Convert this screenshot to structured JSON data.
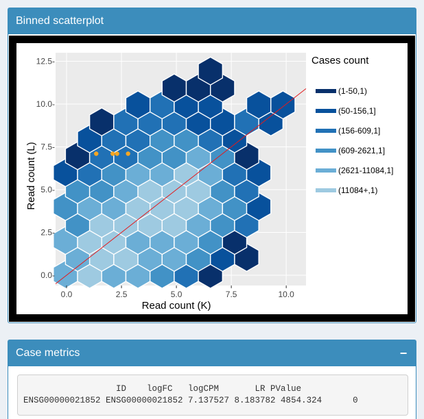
{
  "panel_plot": {
    "title": "Binned scatterplot",
    "collapse_icon": "minus-icon"
  },
  "panel_metrics": {
    "title": "Case metrics",
    "collapse_label": "−",
    "collapse_icon": "minus-icon",
    "table_header": "                  ID    logFC   logCPM       LR PValue",
    "table_row": "ENSG00000021852 ENSG00000021852 7.137527 8.183782 4854.324      0"
  },
  "colors": {
    "header": "#3c8dbc",
    "plot_background": "#ebebeb",
    "bins": [
      "#08306b",
      "#08519c",
      "#2171b5",
      "#4292c6",
      "#6baed6",
      "#9ecae1"
    ],
    "points": "#f5a623",
    "reference_line": "#e41a1c"
  },
  "chart_data": {
    "type": "hexbin",
    "xlabel": "Read count (K)",
    "ylabel": "Read count (L)",
    "xlim": [
      -0.5,
      10.9
    ],
    "ylim": [
      -0.6,
      13.0
    ],
    "xticks": [
      0.0,
      2.5,
      5.0,
      7.5,
      10.0
    ],
    "xtick_labels": [
      "0.0",
      "2.5",
      "5.0",
      "7.5",
      "10.0"
    ],
    "yticks": [
      0.0,
      2.5,
      5.0,
      7.5,
      10.0,
      12.5
    ],
    "ytick_labels": [
      "0.0-",
      "2.5-",
      "5.0-",
      "7.5-",
      "10.0-",
      "12.5-"
    ],
    "grid": true,
    "legend": {
      "title": "Cases count",
      "position": "right",
      "labels": [
        "(1-50,1)",
        "(50-156,1]",
        "(156-609,1]",
        "(609-2621,1]",
        "(2621-11084,1]",
        "(11084+,1)"
      ]
    },
    "reference_line": {
      "x": [
        -0.5,
        10.9
      ],
      "y": [
        -0.5,
        10.9
      ]
    },
    "bins": [
      {
        "x": -0.05,
        "y": 0.05,
        "level": 4
      },
      {
        "x": 1.05,
        "y": 0.05,
        "level": 5
      },
      {
        "x": 2.15,
        "y": 0.05,
        "level": 4
      },
      {
        "x": 3.25,
        "y": 0.05,
        "level": 4
      },
      {
        "x": 4.35,
        "y": 0.05,
        "level": 3
      },
      {
        "x": 5.45,
        "y": 0.05,
        "level": 2
      },
      {
        "x": 6.55,
        "y": 0.05,
        "level": 0
      },
      {
        "x": 0.5,
        "y": 1.04,
        "level": 4
      },
      {
        "x": 1.6,
        "y": 1.04,
        "level": 5
      },
      {
        "x": 2.7,
        "y": 1.04,
        "level": 5
      },
      {
        "x": 3.8,
        "y": 1.04,
        "level": 4
      },
      {
        "x": 4.9,
        "y": 1.04,
        "level": 4
      },
      {
        "x": 6.0,
        "y": 1.04,
        "level": 3
      },
      {
        "x": 7.1,
        "y": 1.04,
        "level": 1
      },
      {
        "x": 8.2,
        "y": 1.04,
        "level": 0
      },
      {
        "x": -0.05,
        "y": 2.03,
        "level": 4
      },
      {
        "x": 1.05,
        "y": 2.03,
        "level": 5
      },
      {
        "x": 2.15,
        "y": 2.03,
        "level": 5
      },
      {
        "x": 3.25,
        "y": 2.03,
        "level": 4
      },
      {
        "x": 4.35,
        "y": 2.03,
        "level": 4
      },
      {
        "x": 5.45,
        "y": 2.03,
        "level": 4
      },
      {
        "x": 6.55,
        "y": 2.03,
        "level": 3
      },
      {
        "x": 7.65,
        "y": 2.03,
        "level": 0
      },
      {
        "x": 0.5,
        "y": 3.02,
        "level": 3
      },
      {
        "x": 1.6,
        "y": 3.02,
        "level": 5
      },
      {
        "x": 2.7,
        "y": 3.02,
        "level": 5
      },
      {
        "x": 3.8,
        "y": 3.02,
        "level": 5
      },
      {
        "x": 4.9,
        "y": 3.02,
        "level": 5
      },
      {
        "x": 6.0,
        "y": 3.02,
        "level": 4
      },
      {
        "x": 7.1,
        "y": 3.02,
        "level": 3
      },
      {
        "x": 8.2,
        "y": 3.02,
        "level": 2
      },
      {
        "x": -0.05,
        "y": 4.01,
        "level": 3
      },
      {
        "x": 1.05,
        "y": 4.01,
        "level": 4
      },
      {
        "x": 2.15,
        "y": 4.01,
        "level": 4
      },
      {
        "x": 3.25,
        "y": 4.01,
        "level": 5
      },
      {
        "x": 4.35,
        "y": 4.01,
        "level": 5
      },
      {
        "x": 5.45,
        "y": 4.01,
        "level": 5
      },
      {
        "x": 6.55,
        "y": 4.01,
        "level": 4
      },
      {
        "x": 7.65,
        "y": 4.01,
        "level": 3
      },
      {
        "x": 8.75,
        "y": 4.01,
        "level": 1
      },
      {
        "x": 0.5,
        "y": 5.0,
        "level": 3
      },
      {
        "x": 1.6,
        "y": 5.0,
        "level": 3
      },
      {
        "x": 2.7,
        "y": 5.0,
        "level": 4
      },
      {
        "x": 3.8,
        "y": 5.0,
        "level": 5
      },
      {
        "x": 4.9,
        "y": 5.0,
        "level": 5
      },
      {
        "x": 6.0,
        "y": 5.0,
        "level": 5
      },
      {
        "x": 7.1,
        "y": 5.0,
        "level": 3
      },
      {
        "x": 8.2,
        "y": 5.0,
        "level": 2
      },
      {
        "x": -0.05,
        "y": 5.99,
        "level": 1
      },
      {
        "x": 1.05,
        "y": 5.99,
        "level": 2
      },
      {
        "x": 2.15,
        "y": 5.99,
        "level": 3
      },
      {
        "x": 3.25,
        "y": 5.99,
        "level": 4
      },
      {
        "x": 4.35,
        "y": 5.99,
        "level": 4
      },
      {
        "x": 5.45,
        "y": 5.99,
        "level": 5
      },
      {
        "x": 6.55,
        "y": 5.99,
        "level": 4
      },
      {
        "x": 7.65,
        "y": 5.99,
        "level": 2
      },
      {
        "x": 8.75,
        "y": 5.99,
        "level": 1
      },
      {
        "x": 0.5,
        "y": 6.98,
        "level": 0
      },
      {
        "x": 1.6,
        "y": 6.98,
        "level": 2
      },
      {
        "x": 2.7,
        "y": 6.98,
        "level": 2
      },
      {
        "x": 3.8,
        "y": 6.98,
        "level": 3
      },
      {
        "x": 4.9,
        "y": 6.98,
        "level": 3
      },
      {
        "x": 6.0,
        "y": 6.98,
        "level": 4
      },
      {
        "x": 7.1,
        "y": 6.98,
        "level": 3
      },
      {
        "x": 8.2,
        "y": 6.98,
        "level": 0
      },
      {
        "x": 1.05,
        "y": 7.97,
        "level": 1
      },
      {
        "x": 2.15,
        "y": 7.97,
        "level": 2
      },
      {
        "x": 3.25,
        "y": 7.97,
        "level": 2
      },
      {
        "x": 4.35,
        "y": 7.97,
        "level": 3
      },
      {
        "x": 5.45,
        "y": 7.97,
        "level": 3
      },
      {
        "x": 6.55,
        "y": 7.97,
        "level": 2
      },
      {
        "x": 7.65,
        "y": 7.97,
        "level": 1
      },
      {
        "x": 1.6,
        "y": 8.96,
        "level": 0
      },
      {
        "x": 2.7,
        "y": 8.96,
        "level": 2
      },
      {
        "x": 3.8,
        "y": 8.96,
        "level": 2
      },
      {
        "x": 4.9,
        "y": 8.96,
        "level": 2
      },
      {
        "x": 6.0,
        "y": 8.96,
        "level": 1
      },
      {
        "x": 7.1,
        "y": 8.96,
        "level": 1
      },
      {
        "x": 8.2,
        "y": 8.96,
        "level": 2
      },
      {
        "x": 9.3,
        "y": 8.96,
        "level": 1
      },
      {
        "x": 3.25,
        "y": 9.95,
        "level": 1
      },
      {
        "x": 4.35,
        "y": 9.95,
        "level": 2
      },
      {
        "x": 5.45,
        "y": 9.95,
        "level": 1
      },
      {
        "x": 6.55,
        "y": 9.95,
        "level": 1
      },
      {
        "x": 8.75,
        "y": 9.95,
        "level": 1
      },
      {
        "x": 9.85,
        "y": 9.95,
        "level": 1
      },
      {
        "x": 4.9,
        "y": 10.94,
        "level": 0
      },
      {
        "x": 6.0,
        "y": 10.94,
        "level": 0
      },
      {
        "x": 7.1,
        "y": 10.94,
        "level": 0
      },
      {
        "x": 6.55,
        "y": 11.93,
        "level": 0
      }
    ],
    "points": [
      {
        "x": 1.35,
        "y": 7.1
      },
      {
        "x": 2.1,
        "y": 7.1
      },
      {
        "x": 2.3,
        "y": 7.1
      },
      {
        "x": 2.8,
        "y": 7.1
      }
    ]
  }
}
